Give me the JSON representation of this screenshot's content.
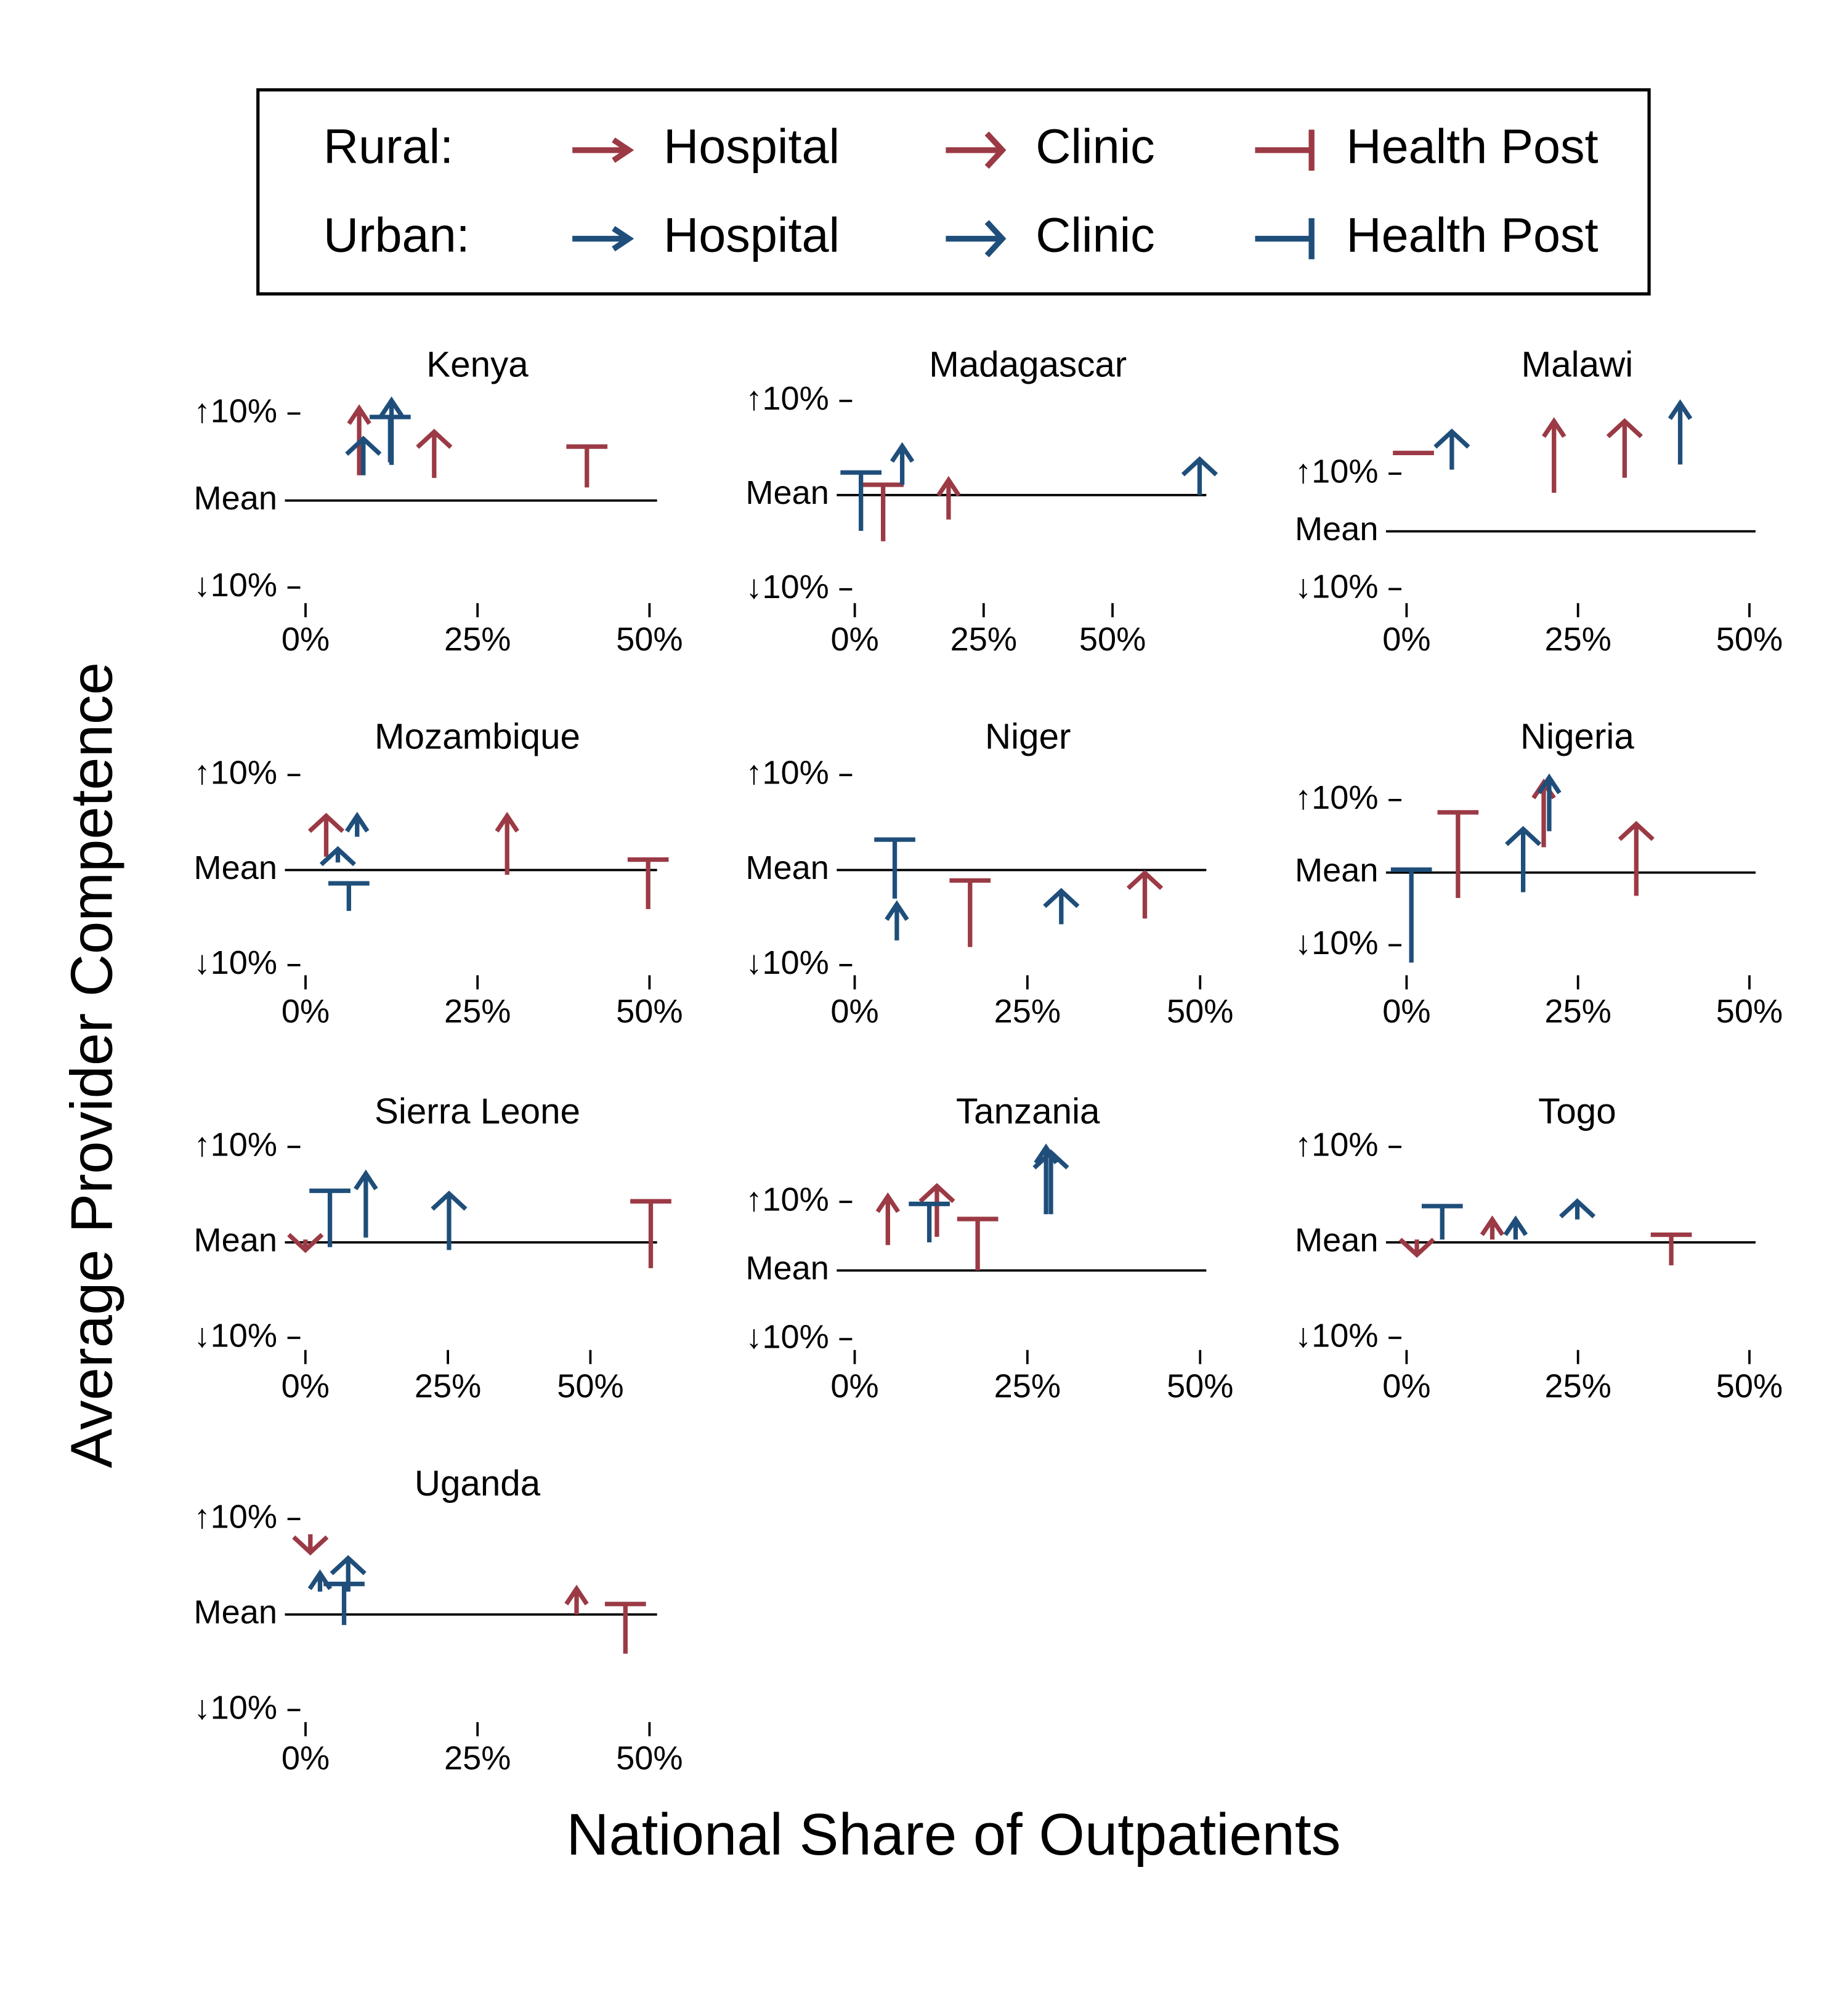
{
  "legend": {
    "rows": [
      {
        "label": "Rural:",
        "color": "#9b3a45"
      },
      {
        "label": "Urban:",
        "color": "#1f4e7a"
      }
    ],
    "kinds": [
      {
        "label": "Hospital",
        "head": "arrow"
      },
      {
        "label": "Clinic",
        "head": "open-arrow"
      },
      {
        "label": "Health Post",
        "head": "bar"
      }
    ]
  },
  "y_label": "Average Provider Competence",
  "x_label": "National Share of Outpatients",
  "chart_data": [
    {
      "type": "spike",
      "title": "Kenya",
      "xlim": [
        -3,
        51.1
      ],
      "ylim": [
        -11.5,
        12.1
      ],
      "xticks": [
        {
          "value": 0,
          "label": "0%"
        },
        {
          "value": 25,
          "label": "25%"
        },
        {
          "value": 50,
          "label": "50%"
        }
      ],
      "yticks": [
        {
          "value": -10,
          "label": "↓10%"
        },
        {
          "value": 0,
          "label": "Mean"
        },
        {
          "value": 10,
          "label": "↑10%"
        }
      ],
      "series": [
        [
          {
            "x": [
              7.8
            ],
            "from": [
              2.9
            ],
            "to": [
              10.6
            ]
          },
          {
            "x": [
              18.7
            ],
            "from": [
              2.6
            ],
            "to": [
              7.9
            ]
          },
          {
            "x": [
              40.9
            ],
            "from": [
              1.5
            ],
            "to": [
              6.2
            ]
          }
        ],
        [
          {
            "x": [
              12.5
            ],
            "from": [
              4.1
            ],
            "to": [
              11.5
            ]
          },
          {
            "x": [
              8.4
            ],
            "from": [
              2.9
            ],
            "to": [
              7.1
            ]
          },
          {
            "x": [
              12.3
            ],
            "from": [
              4.4
            ],
            "to": [
              9.6
            ]
          }
        ]
      ]
    },
    {
      "type": "spike",
      "title": "Madagascar",
      "xlim": [
        -3.5,
        68.2
      ],
      "ylim": [
        -11.2,
        10.6
      ],
      "xticks": [
        {
          "value": 0,
          "label": "0%"
        },
        {
          "value": 25,
          "label": "25%"
        },
        {
          "value": 50,
          "label": "50%"
        }
      ],
      "yticks": [
        {
          "value": -10,
          "label": "↓10%"
        },
        {
          "value": 0,
          "label": "Mean"
        },
        {
          "value": 10,
          "label": "↑10%"
        }
      ],
      "series": [
        [
          {
            "x": [
              18.2
            ],
            "from": [
              -2.6
            ],
            "to": [
              1.6
            ]
          },
          {
            "x": [],
            "from": [],
            "to": []
          },
          {
            "x": [
              5.5
            ],
            "from": [
              -4.9
            ],
            "to": [
              1.1
            ]
          }
        ],
        [
          {
            "x": [
              9.2
            ],
            "from": [
              1.1
            ],
            "to": [
              5.2
            ]
          },
          {
            "x": [
              66.9
            ],
            "from": [
              0
            ],
            "to": [
              3.8
            ]
          },
          {
            "x": [
              1.2
            ],
            "from": [
              -3.8
            ],
            "to": [
              2.4
            ]
          }
        ]
      ]
    },
    {
      "type": "spike",
      "title": "Malawi",
      "xlim": [
        -3,
        50.9
      ],
      "ylim": [
        -12,
        23.6
      ],
      "xticks": [
        {
          "value": 0,
          "label": "0%"
        },
        {
          "value": 25,
          "label": "25%"
        },
        {
          "value": 50,
          "label": "50%"
        }
      ],
      "yticks": [
        {
          "value": -10,
          "label": "↓10%"
        },
        {
          "value": 0,
          "label": "Mean"
        },
        {
          "value": 10,
          "label": "↑10%"
        }
      ],
      "series": [
        [
          {
            "x": [
              21.5
            ],
            "from": [
              6.7
            ],
            "to": [
              19.1
            ]
          },
          {
            "x": [
              31.8
            ],
            "from": [
              9.3
            ],
            "to": [
              19.1
            ]
          },
          {
            "x": [
              1.0
            ],
            "from": [
              13.6
            ],
            "to": [
              13.6
            ]
          }
        ],
        [
          {
            "x": [
              39.9
            ],
            "from": [
              11.6
            ],
            "to": [
              22.2
            ]
          },
          {
            "x": [
              6.6
            ],
            "from": [
              10.7
            ],
            "to": [
              17.3
            ]
          },
          {
            "x": [],
            "from": [],
            "to": []
          }
        ]
      ]
    },
    {
      "type": "spike",
      "title": "Mozambique",
      "xlim": [
        -3,
        51.1
      ],
      "ylim": [
        -10.8,
        10.8
      ],
      "xticks": [
        {
          "value": 0,
          "label": "0%"
        },
        {
          "value": 25,
          "label": "25%"
        },
        {
          "value": 50,
          "label": "50%"
        }
      ],
      "yticks": [
        {
          "value": -10,
          "label": "↓10%"
        },
        {
          "value": 0,
          "label": "Mean"
        },
        {
          "value": 10,
          "label": "↑10%"
        }
      ],
      "series": [
        [
          {
            "x": [
              29.3
            ],
            "from": [
              -0.5
            ],
            "to": [
              5.7
            ]
          },
          {
            "x": [
              3.0
            ],
            "from": [
              1.4
            ],
            "to": [
              5.7
            ]
          },
          {
            "x": [
              49.8
            ],
            "from": [
              -4.1
            ],
            "to": [
              1.1
            ]
          }
        ],
        [
          {
            "x": [
              7.5
            ],
            "from": [
              3.5
            ],
            "to": [
              5.7
            ]
          },
          {
            "x": [
              4.7
            ],
            "from": [
              0.8
            ],
            "to": [
              2.2
            ]
          },
          {
            "x": [
              6.3
            ],
            "from": [
              -4.3
            ],
            "to": [
              -1.4
            ]
          }
        ]
      ]
    },
    {
      "type": "spike",
      "title": "Niger",
      "xlim": [
        -2.6,
        50.9
      ],
      "ylim": [
        -10.8,
        10.8
      ],
      "xticks": [
        {
          "value": 0,
          "label": "0%"
        },
        {
          "value": 25,
          "label": "25%"
        },
        {
          "value": 50,
          "label": "50%"
        }
      ],
      "yticks": [
        {
          "value": -10,
          "label": "↓10%"
        },
        {
          "value": 0,
          "label": "Mean"
        },
        {
          "value": 10,
          "label": "↑10%"
        }
      ],
      "series": [
        [
          {
            "x": [],
            "from": [],
            "to": []
          },
          {
            "x": [
              42.0
            ],
            "from": [
              -5.1
            ],
            "to": [
              -0.3
            ]
          },
          {
            "x": [
              16.7
            ],
            "from": [
              -8.1
            ],
            "to": [
              -1.1
            ]
          }
        ],
        [
          {
            "x": [
              6.1
            ],
            "from": [
              -7.4
            ],
            "to": [
              -3.6
            ]
          },
          {
            "x": [
              29.9
            ],
            "from": [
              -5.7
            ],
            "to": [
              -2.2
            ]
          },
          {
            "x": [
              5.8
            ],
            "from": [
              -3.0
            ],
            "to": [
              3.2
            ]
          }
        ]
      ]
    },
    {
      "type": "spike",
      "title": "Nigeria",
      "xlim": [
        -3,
        50.9
      ],
      "ylim": [
        -13.8,
        14.5
      ],
      "xticks": [
        {
          "value": 0,
          "label": "0%"
        },
        {
          "value": 25,
          "label": "25%"
        },
        {
          "value": 50,
          "label": "50%"
        }
      ],
      "yticks": [
        {
          "value": -10,
          "label": "↓10%"
        },
        {
          "value": 0,
          "label": "Mean"
        },
        {
          "value": 10,
          "label": "↑10%"
        }
      ],
      "series": [
        [
          {
            "x": [
              20.0
            ],
            "from": [
              3.5
            ],
            "to": [
              12.4
            ]
          },
          {
            "x": [
              33.5
            ],
            "from": [
              -3.2
            ],
            "to": [
              6.7
            ]
          },
          {
            "x": [
              7.5
            ],
            "from": [
              -3.5
            ],
            "to": [
              8.3
            ]
          }
        ],
        [
          {
            "x": [
              20.8
            ],
            "from": [
              5.7
            ],
            "to": [
              13.1
            ]
          },
          {
            "x": [
              17.0
            ],
            "from": [
              -2.7
            ],
            "to": [
              6.0
            ]
          },
          {
            "x": [
              0.7
            ],
            "from": [
              -12.4
            ],
            "to": [
              0.4
            ]
          }
        ]
      ]
    },
    {
      "type": "spike",
      "title": "Sierra Leone",
      "xlim": [
        -3.6,
        61.7
      ],
      "ylim": [
        -11.0,
        10.5
      ],
      "xticks": [
        {
          "value": 0,
          "label": "0%"
        },
        {
          "value": 25,
          "label": "25%"
        },
        {
          "value": 50,
          "label": "50%"
        }
      ],
      "yticks": [
        {
          "value": -10,
          "label": "↓10%"
        },
        {
          "value": 0,
          "label": "Mean"
        },
        {
          "value": 10,
          "label": "↑10%"
        }
      ],
      "series": [
        [
          {
            "x": [],
            "from": [],
            "to": []
          },
          {
            "x": [
              0
            ],
            "from": [
              0.3
            ],
            "to": [
              -0.8
            ]
          },
          {
            "x": [
              60.6
            ],
            "from": [
              -2.7
            ],
            "to": [
              4.3
            ]
          }
        ],
        [
          {
            "x": [
              10.6
            ],
            "from": [
              0.5
            ],
            "to": [
              7.2
            ]
          },
          {
            "x": [
              25.2
            ],
            "from": [
              -0.8
            ],
            "to": [
              5.1
            ]
          },
          {
            "x": [
              4.3
            ],
            "from": [
              -0.5
            ],
            "to": [
              5.4
            ]
          }
        ]
      ]
    },
    {
      "type": "spike",
      "title": "Tanzania",
      "xlim": [
        -2.6,
        50.9
      ],
      "ylim": [
        -11.2,
        18.7
      ],
      "xticks": [
        {
          "value": 0,
          "label": "0%"
        },
        {
          "value": 25,
          "label": "25%"
        },
        {
          "value": 50,
          "label": "50%"
        }
      ],
      "yticks": [
        {
          "value": -10,
          "label": "↓10%"
        },
        {
          "value": 0,
          "label": "Mean"
        },
        {
          "value": 10,
          "label": "↑10%"
        }
      ],
      "series": [
        [
          {
            "x": [
              4.8
            ],
            "from": [
              3.7
            ],
            "to": [
              10.8
            ]
          },
          {
            "x": [
              11.9
            ],
            "from": [
              4.9
            ],
            "to": [
              12.3
            ]
          },
          {
            "x": [
              17.8
            ],
            "from": [
              0
            ],
            "to": [
              7.5
            ]
          }
        ],
        [
          {
            "x": [
              27.7
            ],
            "from": [
              8.2
            ],
            "to": [
              17.9
            ]
          },
          {
            "x": [
              28.4
            ],
            "from": [
              8.2
            ],
            "to": [
              17.2
            ]
          },
          {
            "x": [
              10.8
            ],
            "from": [
              4.1
            ],
            "to": [
              9.7
            ]
          }
        ]
      ]
    },
    {
      "type": "spike",
      "title": "Togo",
      "xlim": [
        -3,
        50.9
      ],
      "ylim": [
        -11.0,
        10.5
      ],
      "xticks": [
        {
          "value": 0,
          "label": "0%"
        },
        {
          "value": 25,
          "label": "25%"
        },
        {
          "value": 50,
          "label": "50%"
        }
      ],
      "yticks": [
        {
          "value": -10,
          "label": "↓10%"
        },
        {
          "value": 0,
          "label": "Mean"
        },
        {
          "value": 10,
          "label": "↑10%"
        }
      ],
      "series": [
        [
          {
            "x": [
              12.5
            ],
            "from": [
              0.3
            ],
            "to": [
              2.4
            ]
          },
          {
            "x": [
              1.5
            ],
            "from": [
              0.3
            ],
            "to": [
              -1.3
            ]
          },
          {
            "x": [
              38.6
            ],
            "from": [
              -2.4
            ],
            "to": [
              0.8
            ]
          }
        ],
        [
          {
            "x": [
              15.9
            ],
            "from": [
              0.3
            ],
            "to": [
              2.4
            ]
          },
          {
            "x": [
              24.9
            ],
            "from": [
              2.4
            ],
            "to": [
              4.3
            ]
          },
          {
            "x": [
              5.2
            ],
            "from": [
              0.3
            ],
            "to": [
              3.8
            ]
          }
        ]
      ]
    },
    {
      "type": "spike",
      "title": "Uganda",
      "xlim": [
        -3,
        51.1
      ],
      "ylim": [
        -11.0,
        10.5
      ],
      "xticks": [
        {
          "value": 0,
          "label": "0%"
        },
        {
          "value": 25,
          "label": "25%"
        },
        {
          "value": 50,
          "label": "50%"
        }
      ],
      "yticks": [
        {
          "value": -10,
          "label": "↓10%"
        },
        {
          "value": 0,
          "label": "Mean"
        },
        {
          "value": 10,
          "label": "↑10%"
        }
      ],
      "series": [
        [
          {
            "x": [
              39.4
            ],
            "from": [
              0
            ],
            "to": [
              2.7
            ]
          },
          {
            "x": [
              0.7
            ],
            "from": [
              8.4
            ],
            "to": [
              6.5
            ]
          },
          {
            "x": [
              46.5
            ],
            "from": [
              -4.1
            ],
            "to": [
              1.1
            ]
          }
        ],
        [
          {
            "x": [
              2.1
            ],
            "from": [
              2.4
            ],
            "to": [
              4.3
            ]
          },
          {
            "x": [
              6.2
            ],
            "from": [
              2.4
            ],
            "to": [
              5.9
            ]
          },
          {
            "x": [
              5.6
            ],
            "from": [
              -1.1
            ],
            "to": [
              3.2
            ]
          }
        ]
      ]
    }
  ]
}
